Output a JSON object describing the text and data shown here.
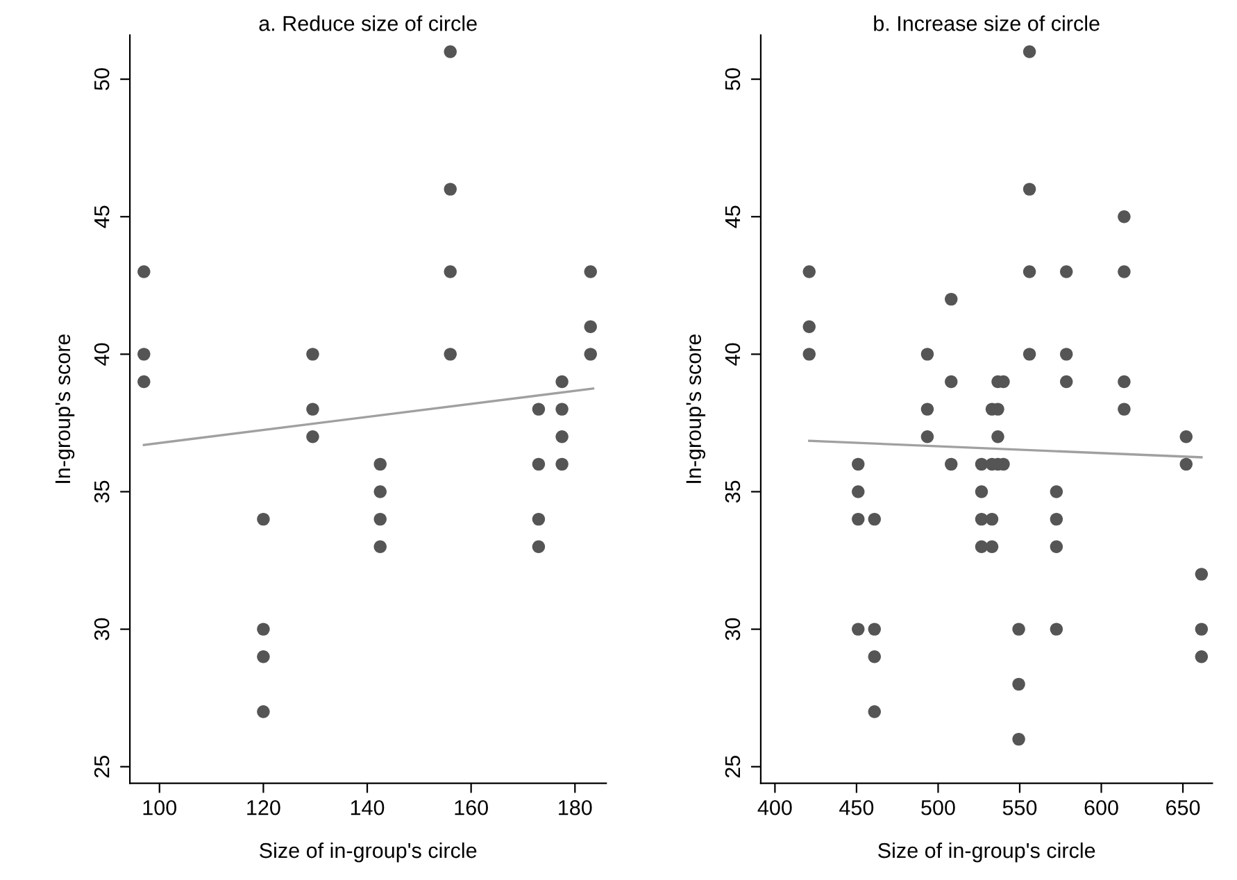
{
  "chart_data": [
    {
      "type": "scatter",
      "title": "a. Reduce size of circle",
      "xlabel": "Size of in-group's circle",
      "ylabel": "In-group's score",
      "xlim": [
        94.3,
        186
      ],
      "ylim": [
        24.4,
        51.6
      ],
      "xticks": [
        100,
        120,
        140,
        160,
        180
      ],
      "yticks": [
        25,
        30,
        35,
        40,
        45,
        50
      ],
      "grid": false,
      "legend": false,
      "series": [
        {
          "marker": "circle",
          "color": "#555555",
          "x": [
            97,
            97,
            97,
            120,
            120,
            120,
            120,
            129.5,
            129.5,
            129.5,
            142.5,
            142.5,
            142.5,
            142.5,
            156,
            156,
            156,
            156,
            173,
            173,
            173,
            173,
            177.5,
            177.5,
            177.5,
            177.5,
            183,
            183,
            183
          ],
          "values": [
            43,
            40,
            39,
            34,
            30,
            29,
            27,
            40,
            38,
            37,
            36,
            35,
            34,
            33,
            51,
            46,
            43,
            40,
            38,
            36,
            34,
            33,
            39,
            38,
            37,
            36,
            43,
            41,
            40
          ]
        },
        {
          "type": "line",
          "color": "#a0a0a0",
          "x": [
            97,
            183.5
          ],
          "values": [
            36.7,
            38.75
          ]
        }
      ]
    },
    {
      "type": "scatter",
      "title": "b. Increase size of circle",
      "xlabel": "Size of in-group's circle",
      "ylabel": "In-group's score",
      "xlim": [
        391.3,
        668
      ],
      "ylim": [
        24.4,
        51.6
      ],
      "xticks": [
        400,
        450,
        500,
        550,
        600,
        650
      ],
      "yticks": [
        25,
        30,
        35,
        40,
        45,
        50
      ],
      "grid": false,
      "legend": false,
      "series": [
        {
          "marker": "circle",
          "color": "#555555",
          "x": [
            421,
            421,
            421,
            451,
            451,
            451,
            451,
            461,
            461,
            461,
            461,
            493.4,
            493.4,
            493.4,
            508,
            508,
            508,
            526.6,
            526.6,
            526.6,
            526.6,
            533,
            533,
            533,
            533,
            536.6,
            536.6,
            536.6,
            536.6,
            540,
            540,
            549.4,
            549.4,
            549.4,
            556,
            556,
            556,
            556,
            572.5,
            572.5,
            572.5,
            572.5,
            578.6,
            578.6,
            578.6,
            614,
            614,
            614,
            614,
            652,
            652,
            661.4,
            661.4,
            661.4
          ],
          "values": [
            43,
            41,
            40,
            36,
            35,
            34,
            30,
            34,
            30,
            29,
            27,
            40,
            38,
            37,
            42,
            39,
            36,
            36,
            35,
            34,
            33,
            38,
            36,
            34,
            33,
            39,
            38,
            37,
            36,
            39,
            36,
            30,
            28,
            26,
            51,
            46,
            43,
            40,
            35,
            34,
            33,
            30,
            43,
            40,
            39,
            45,
            43,
            39,
            38,
            37,
            36,
            32,
            30,
            29
          ]
        },
        {
          "type": "line",
          "color": "#a0a0a0",
          "x": [
            421,
            661.4
          ],
          "values": [
            36.85,
            36.25
          ]
        }
      ]
    }
  ]
}
